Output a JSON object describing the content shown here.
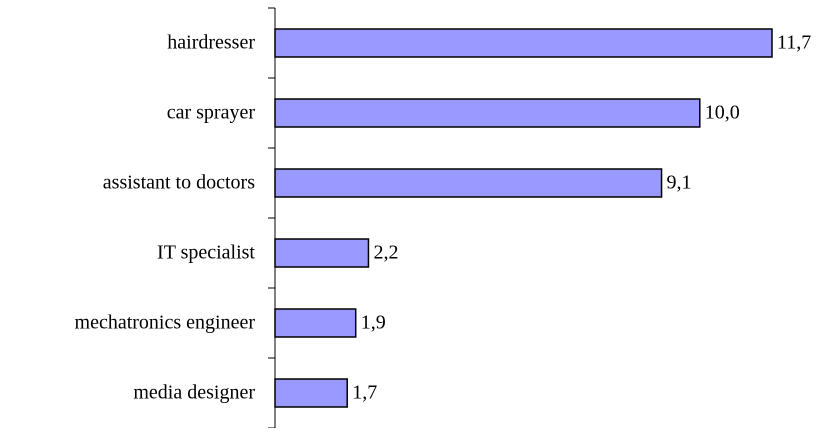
{
  "chart_data": {
    "type": "bar",
    "orientation": "horizontal",
    "categories": [
      "hairdresser",
      "car sprayer",
      "assistant to doctors",
      "IT specialist",
      "mechatronics engineer",
      "media designer"
    ],
    "values": [
      11.7,
      10.0,
      9.1,
      2.2,
      1.9,
      1.7
    ],
    "value_labels": [
      "11,7",
      "10,0",
      "9,1",
      "2,2",
      "1,9",
      "1,7"
    ],
    "color": "#9999ff"
  }
}
